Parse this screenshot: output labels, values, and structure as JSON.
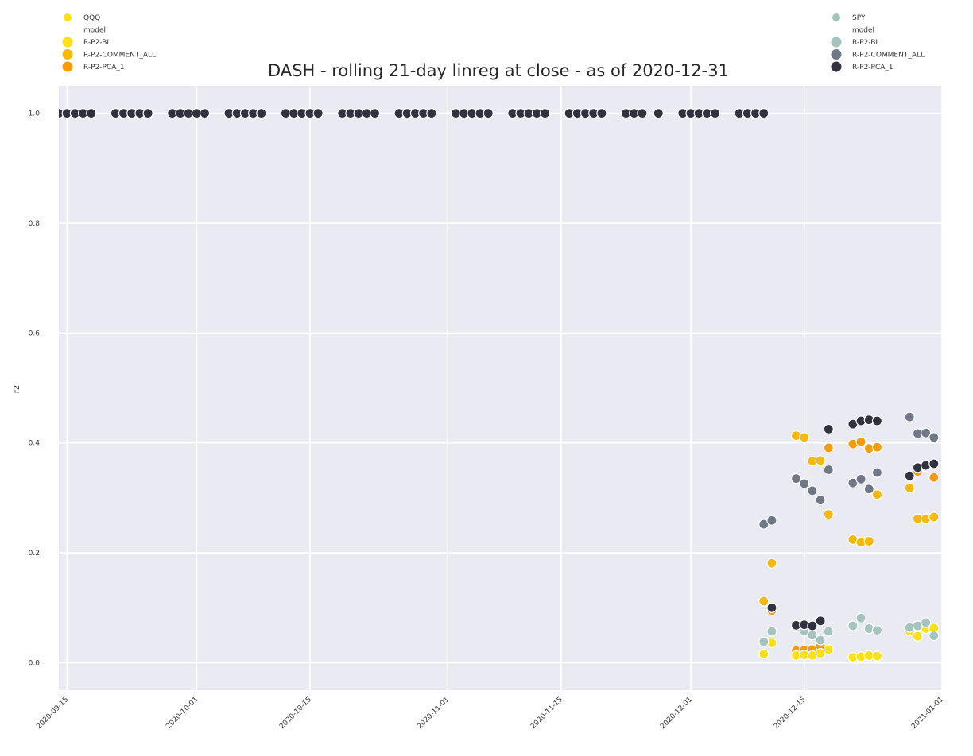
{
  "chart_data": {
    "type": "scatter",
    "title": "DASH - rolling 21-day linreg at close - as of 2020-12-31",
    "xlabel": "",
    "ylabel": "r2",
    "xlim": [
      "2020-09-14",
      "2021-01-01"
    ],
    "ylim": [
      -0.05,
      1.05
    ],
    "x_ticks": [
      "2020-09-15",
      "2020-10-01",
      "2020-10-15",
      "2020-11-01",
      "2020-11-15",
      "2020-12-01",
      "2020-12-15",
      "2021-01-01"
    ],
    "y_ticks": [
      "0.0",
      "0.2",
      "0.4",
      "0.6",
      "0.8",
      "1.0"
    ],
    "grid": true,
    "colors": {
      "background": "#eaeaf2",
      "grid": "#ffffff",
      "QQQ|R-P2-BL": "#fde01a",
      "QQQ|R-P2-COMMENT_ALL": "#f7b80a",
      "QQQ|R-P2-PCA_1": "#f69b0b",
      "SPY|R-P2-BL": "#a5c4c0",
      "SPY|R-P2-COMMENT_ALL": "#6f7888",
      "SPY|R-P2-PCA_1": "#30323f"
    },
    "legends": [
      {
        "placement": "top-left",
        "hue_title": "QQQ",
        "style_title": "model",
        "items": [
          "R-P2-BL",
          "R-P2-COMMENT_ALL",
          "R-P2-PCA_1"
        ],
        "hue_color": "#fde01a",
        "item_colors": [
          "#fde01a",
          "#f7b80a",
          "#f69b0b"
        ]
      },
      {
        "placement": "top-right",
        "hue_title": "SPY",
        "style_title": "model",
        "items": [
          "R-P2-BL",
          "R-P2-COMMENT_ALL",
          "R-P2-PCA_1"
        ],
        "hue_color": "#a5c4c0",
        "item_colors": [
          "#a5c4c0",
          "#6f7888",
          "#30323f"
        ]
      }
    ],
    "series": [
      {
        "name": "R-P2-PCA_1",
        "group": "QQQ",
        "color_key": "QQQ|R-P2-PCA_1",
        "points": [
          {
            "x": "2020-09-14",
            "y": 1.0
          },
          {
            "x": "2020-09-15",
            "y": 1.0
          },
          {
            "x": "2020-09-16",
            "y": 1.0
          },
          {
            "x": "2020-09-17",
            "y": 1.0
          },
          {
            "x": "2020-09-18",
            "y": 1.0
          },
          {
            "x": "2020-09-21",
            "y": 1.0
          },
          {
            "x": "2020-09-22",
            "y": 1.0
          },
          {
            "x": "2020-09-23",
            "y": 1.0
          },
          {
            "x": "2020-09-24",
            "y": 1.0
          },
          {
            "x": "2020-09-25",
            "y": 1.0
          },
          {
            "x": "2020-09-28",
            "y": 1.0
          },
          {
            "x": "2020-09-29",
            "y": 1.0
          },
          {
            "x": "2020-09-30",
            "y": 1.0
          },
          {
            "x": "2020-10-01",
            "y": 1.0
          },
          {
            "x": "2020-10-02",
            "y": 1.0
          },
          {
            "x": "2020-10-05",
            "y": 1.0
          },
          {
            "x": "2020-10-06",
            "y": 1.0
          },
          {
            "x": "2020-10-07",
            "y": 1.0
          },
          {
            "x": "2020-10-08",
            "y": 1.0
          },
          {
            "x": "2020-10-09",
            "y": 1.0
          },
          {
            "x": "2020-10-12",
            "y": 1.0
          },
          {
            "x": "2020-10-13",
            "y": 1.0
          },
          {
            "x": "2020-10-14",
            "y": 1.0
          },
          {
            "x": "2020-10-15",
            "y": 1.0
          },
          {
            "x": "2020-10-16",
            "y": 1.0
          },
          {
            "x": "2020-10-19",
            "y": 1.0
          },
          {
            "x": "2020-10-20",
            "y": 1.0
          },
          {
            "x": "2020-10-21",
            "y": 1.0
          },
          {
            "x": "2020-10-22",
            "y": 1.0
          },
          {
            "x": "2020-10-23",
            "y": 1.0
          },
          {
            "x": "2020-10-26",
            "y": 1.0
          },
          {
            "x": "2020-10-27",
            "y": 1.0
          },
          {
            "x": "2020-10-28",
            "y": 1.0
          },
          {
            "x": "2020-10-29",
            "y": 1.0
          },
          {
            "x": "2020-10-30",
            "y": 1.0
          },
          {
            "x": "2020-11-02",
            "y": 1.0
          },
          {
            "x": "2020-11-03",
            "y": 1.0
          },
          {
            "x": "2020-11-04",
            "y": 1.0
          },
          {
            "x": "2020-11-05",
            "y": 1.0
          },
          {
            "x": "2020-11-06",
            "y": 1.0
          },
          {
            "x": "2020-11-09",
            "y": 1.0
          },
          {
            "x": "2020-11-10",
            "y": 1.0
          },
          {
            "x": "2020-11-11",
            "y": 1.0
          },
          {
            "x": "2020-11-12",
            "y": 1.0
          },
          {
            "x": "2020-11-13",
            "y": 1.0
          },
          {
            "x": "2020-11-16",
            "y": 1.0
          },
          {
            "x": "2020-11-17",
            "y": 1.0
          },
          {
            "x": "2020-11-18",
            "y": 1.0
          },
          {
            "x": "2020-11-19",
            "y": 1.0
          },
          {
            "x": "2020-11-20",
            "y": 1.0
          },
          {
            "x": "2020-11-23",
            "y": 1.0
          },
          {
            "x": "2020-11-24",
            "y": 1.0
          },
          {
            "x": "2020-11-25",
            "y": 1.0
          },
          {
            "x": "2020-11-27",
            "y": 1.0
          },
          {
            "x": "2020-11-30",
            "y": 1.0
          },
          {
            "x": "2020-12-01",
            "y": 1.0
          },
          {
            "x": "2020-12-02",
            "y": 1.0
          },
          {
            "x": "2020-12-03",
            "y": 1.0
          },
          {
            "x": "2020-12-04",
            "y": 1.0
          },
          {
            "x": "2020-12-07",
            "y": 1.0
          },
          {
            "x": "2020-12-08",
            "y": 1.0
          },
          {
            "x": "2020-12-09",
            "y": 1.0
          },
          {
            "x": "2020-12-10",
            "y": 1.0
          },
          {
            "x": "2020-12-11",
            "y": 0.095
          },
          {
            "x": "2020-12-14",
            "y": 0.022
          },
          {
            "x": "2020-12-15",
            "y": 0.023
          },
          {
            "x": "2020-12-16",
            "y": 0.024
          },
          {
            "x": "2020-12-17",
            "y": 0.03
          },
          {
            "x": "2020-12-18",
            "y": 0.391
          },
          {
            "x": "2020-12-21",
            "y": 0.398
          },
          {
            "x": "2020-12-22",
            "y": 0.402
          },
          {
            "x": "2020-12-23",
            "y": 0.39
          },
          {
            "x": "2020-12-24",
            "y": 0.392
          },
          {
            "x": "2020-12-28",
            "y": 0.338
          },
          {
            "x": "2020-12-29",
            "y": 0.348
          },
          {
            "x": "2020-12-30",
            "y": 0.357
          },
          {
            "x": "2020-12-31",
            "y": 0.337
          }
        ]
      },
      {
        "name": "R-P2-COMMENT_ALL",
        "group": "QQQ",
        "color_key": "QQQ|R-P2-COMMENT_ALL",
        "points": [
          {
            "x": "2020-12-10",
            "y": 0.112
          },
          {
            "x": "2020-12-11",
            "y": 0.181
          },
          {
            "x": "2020-12-14",
            "y": 0.413
          },
          {
            "x": "2020-12-15",
            "y": 0.41
          },
          {
            "x": "2020-12-16",
            "y": 0.367
          },
          {
            "x": "2020-12-17",
            "y": 0.368
          },
          {
            "x": "2020-12-18",
            "y": 0.27
          },
          {
            "x": "2020-12-21",
            "y": 0.224
          },
          {
            "x": "2020-12-22",
            "y": 0.219
          },
          {
            "x": "2020-12-23",
            "y": 0.221
          },
          {
            "x": "2020-12-24",
            "y": 0.306
          },
          {
            "x": "2020-12-28",
            "y": 0.318
          },
          {
            "x": "2020-12-29",
            "y": 0.262
          },
          {
            "x": "2020-12-30",
            "y": 0.262
          },
          {
            "x": "2020-12-31",
            "y": 0.265
          }
        ]
      },
      {
        "name": "R-P2-BL",
        "group": "QQQ",
        "color_key": "QQQ|R-P2-BL",
        "points": [
          {
            "x": "2020-12-10",
            "y": 0.016
          },
          {
            "x": "2020-12-11",
            "y": 0.036
          },
          {
            "x": "2020-12-14",
            "y": 0.013
          },
          {
            "x": "2020-12-15",
            "y": 0.014
          },
          {
            "x": "2020-12-16",
            "y": 0.013
          },
          {
            "x": "2020-12-17",
            "y": 0.017
          },
          {
            "x": "2020-12-18",
            "y": 0.024
          },
          {
            "x": "2020-12-21",
            "y": 0.01
          },
          {
            "x": "2020-12-22",
            "y": 0.011
          },
          {
            "x": "2020-12-23",
            "y": 0.013
          },
          {
            "x": "2020-12-24",
            "y": 0.012
          },
          {
            "x": "2020-12-28",
            "y": 0.058
          },
          {
            "x": "2020-12-29",
            "y": 0.048
          },
          {
            "x": "2020-12-30",
            "y": 0.062
          },
          {
            "x": "2020-12-31",
            "y": 0.063
          }
        ]
      },
      {
        "name": "R-P2-BL",
        "group": "SPY",
        "color_key": "SPY|R-P2-BL",
        "points": [
          {
            "x": "2020-12-10",
            "y": 0.038
          },
          {
            "x": "2020-12-11",
            "y": 0.057
          },
          {
            "x": "2020-12-14",
            "y": 0.065
          },
          {
            "x": "2020-12-15",
            "y": 0.058
          },
          {
            "x": "2020-12-16",
            "y": 0.05
          },
          {
            "x": "2020-12-17",
            "y": 0.041
          },
          {
            "x": "2020-12-18",
            "y": 0.057
          },
          {
            "x": "2020-12-21",
            "y": 0.067
          },
          {
            "x": "2020-12-22",
            "y": 0.081
          },
          {
            "x": "2020-12-23",
            "y": 0.062
          },
          {
            "x": "2020-12-24",
            "y": 0.059
          },
          {
            "x": "2020-12-28",
            "y": 0.064
          },
          {
            "x": "2020-12-29",
            "y": 0.067
          },
          {
            "x": "2020-12-30",
            "y": 0.073
          },
          {
            "x": "2020-12-31",
            "y": 0.049
          }
        ]
      },
      {
        "name": "R-P2-COMMENT_ALL",
        "group": "SPY",
        "color_key": "SPY|R-P2-COMMENT_ALL",
        "points": [
          {
            "x": "2020-12-10",
            "y": 0.252
          },
          {
            "x": "2020-12-11",
            "y": 0.259
          },
          {
            "x": "2020-12-14",
            "y": 0.335
          },
          {
            "x": "2020-12-15",
            "y": 0.326
          },
          {
            "x": "2020-12-16",
            "y": 0.313
          },
          {
            "x": "2020-12-17",
            "y": 0.296
          },
          {
            "x": "2020-12-18",
            "y": 0.351
          },
          {
            "x": "2020-12-21",
            "y": 0.327
          },
          {
            "x": "2020-12-22",
            "y": 0.334
          },
          {
            "x": "2020-12-23",
            "y": 0.316
          },
          {
            "x": "2020-12-24",
            "y": 0.346
          },
          {
            "x": "2020-12-28",
            "y": 0.447
          },
          {
            "x": "2020-12-29",
            "y": 0.417
          },
          {
            "x": "2020-12-30",
            "y": 0.418
          },
          {
            "x": "2020-12-31",
            "y": 0.41
          }
        ]
      },
      {
        "name": "R-P2-PCA_1",
        "group": "SPY",
        "color_key": "SPY|R-P2-PCA_1",
        "points": [
          {
            "x": "2020-09-14",
            "y": 1.0
          },
          {
            "x": "2020-09-15",
            "y": 1.0
          },
          {
            "x": "2020-09-16",
            "y": 1.0
          },
          {
            "x": "2020-09-17",
            "y": 1.0
          },
          {
            "x": "2020-09-18",
            "y": 1.0
          },
          {
            "x": "2020-09-21",
            "y": 1.0
          },
          {
            "x": "2020-09-22",
            "y": 1.0
          },
          {
            "x": "2020-09-23",
            "y": 1.0
          },
          {
            "x": "2020-09-24",
            "y": 1.0
          },
          {
            "x": "2020-09-25",
            "y": 1.0
          },
          {
            "x": "2020-09-28",
            "y": 1.0
          },
          {
            "x": "2020-09-29",
            "y": 1.0
          },
          {
            "x": "2020-09-30",
            "y": 1.0
          },
          {
            "x": "2020-10-01",
            "y": 1.0
          },
          {
            "x": "2020-10-02",
            "y": 1.0
          },
          {
            "x": "2020-10-05",
            "y": 1.0
          },
          {
            "x": "2020-10-06",
            "y": 1.0
          },
          {
            "x": "2020-10-07",
            "y": 1.0
          },
          {
            "x": "2020-10-08",
            "y": 1.0
          },
          {
            "x": "2020-10-09",
            "y": 1.0
          },
          {
            "x": "2020-10-12",
            "y": 1.0
          },
          {
            "x": "2020-10-13",
            "y": 1.0
          },
          {
            "x": "2020-10-14",
            "y": 1.0
          },
          {
            "x": "2020-10-15",
            "y": 1.0
          },
          {
            "x": "2020-10-16",
            "y": 1.0
          },
          {
            "x": "2020-10-19",
            "y": 1.0
          },
          {
            "x": "2020-10-20",
            "y": 1.0
          },
          {
            "x": "2020-10-21",
            "y": 1.0
          },
          {
            "x": "2020-10-22",
            "y": 1.0
          },
          {
            "x": "2020-10-23",
            "y": 1.0
          },
          {
            "x": "2020-10-26",
            "y": 1.0
          },
          {
            "x": "2020-10-27",
            "y": 1.0
          },
          {
            "x": "2020-10-28",
            "y": 1.0
          },
          {
            "x": "2020-10-29",
            "y": 1.0
          },
          {
            "x": "2020-10-30",
            "y": 1.0
          },
          {
            "x": "2020-11-02",
            "y": 1.0
          },
          {
            "x": "2020-11-03",
            "y": 1.0
          },
          {
            "x": "2020-11-04",
            "y": 1.0
          },
          {
            "x": "2020-11-05",
            "y": 1.0
          },
          {
            "x": "2020-11-06",
            "y": 1.0
          },
          {
            "x": "2020-11-09",
            "y": 1.0
          },
          {
            "x": "2020-11-10",
            "y": 1.0
          },
          {
            "x": "2020-11-11",
            "y": 1.0
          },
          {
            "x": "2020-11-12",
            "y": 1.0
          },
          {
            "x": "2020-11-13",
            "y": 1.0
          },
          {
            "x": "2020-11-16",
            "y": 1.0
          },
          {
            "x": "2020-11-17",
            "y": 1.0
          },
          {
            "x": "2020-11-18",
            "y": 1.0
          },
          {
            "x": "2020-11-19",
            "y": 1.0
          },
          {
            "x": "2020-11-20",
            "y": 1.0
          },
          {
            "x": "2020-11-23",
            "y": 1.0
          },
          {
            "x": "2020-11-24",
            "y": 1.0
          },
          {
            "x": "2020-11-25",
            "y": 1.0
          },
          {
            "x": "2020-11-27",
            "y": 1.0
          },
          {
            "x": "2020-11-30",
            "y": 1.0
          },
          {
            "x": "2020-12-01",
            "y": 1.0
          },
          {
            "x": "2020-12-02",
            "y": 1.0
          },
          {
            "x": "2020-12-03",
            "y": 1.0
          },
          {
            "x": "2020-12-04",
            "y": 1.0
          },
          {
            "x": "2020-12-07",
            "y": 1.0
          },
          {
            "x": "2020-12-08",
            "y": 1.0
          },
          {
            "x": "2020-12-09",
            "y": 1.0
          },
          {
            "x": "2020-12-10",
            "y": 1.0
          },
          {
            "x": "2020-12-11",
            "y": 0.1
          },
          {
            "x": "2020-12-14",
            "y": 0.068
          },
          {
            "x": "2020-12-15",
            "y": 0.069
          },
          {
            "x": "2020-12-16",
            "y": 0.067
          },
          {
            "x": "2020-12-17",
            "y": 0.076
          },
          {
            "x": "2020-12-18",
            "y": 0.425
          },
          {
            "x": "2020-12-21",
            "y": 0.434
          },
          {
            "x": "2020-12-22",
            "y": 0.44
          },
          {
            "x": "2020-12-23",
            "y": 0.442
          },
          {
            "x": "2020-12-24",
            "y": 0.44
          },
          {
            "x": "2020-12-28",
            "y": 0.34
          },
          {
            "x": "2020-12-29",
            "y": 0.355
          },
          {
            "x": "2020-12-30",
            "y": 0.359
          },
          {
            "x": "2020-12-31",
            "y": 0.362
          }
        ]
      }
    ]
  }
}
